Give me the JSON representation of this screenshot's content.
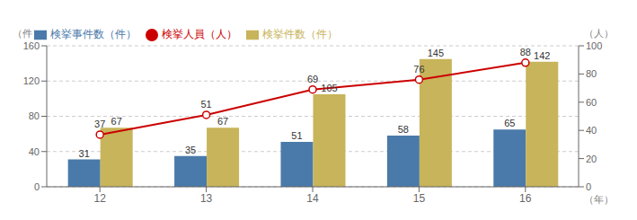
{
  "chart_data": {
    "type": "bar",
    "categories": [
      "12",
      "13",
      "14",
      "15",
      "16"
    ],
    "series": [
      {
        "name": "検挙事件数（件）",
        "color": "#4a7aaa",
        "values": [
          31,
          35,
          51,
          58,
          65
        ]
      },
      {
        "name": "検挙件数（件）",
        "color": "#c8b45a",
        "values": [
          67,
          67,
          105,
          145,
          142
        ]
      },
      {
        "name": "検挙人員（人）",
        "color": "#cc0000",
        "type": "line",
        "axis": "y2",
        "marker": "circle",
        "values": [
          37,
          51,
          69,
          76,
          88
        ]
      }
    ],
    "ylabel": "（件）",
    "y2label": "（人）",
    "xlabel": "（年）",
    "ylim": [
      0,
      160
    ],
    "yticks": [
      0,
      40,
      80,
      120,
      160
    ],
    "y2lim": [
      0,
      100
    ],
    "y2ticks": [
      0,
      20,
      40,
      60,
      80,
      100
    ],
    "grid": true,
    "legend": "upper left",
    "data_labels": true
  }
}
